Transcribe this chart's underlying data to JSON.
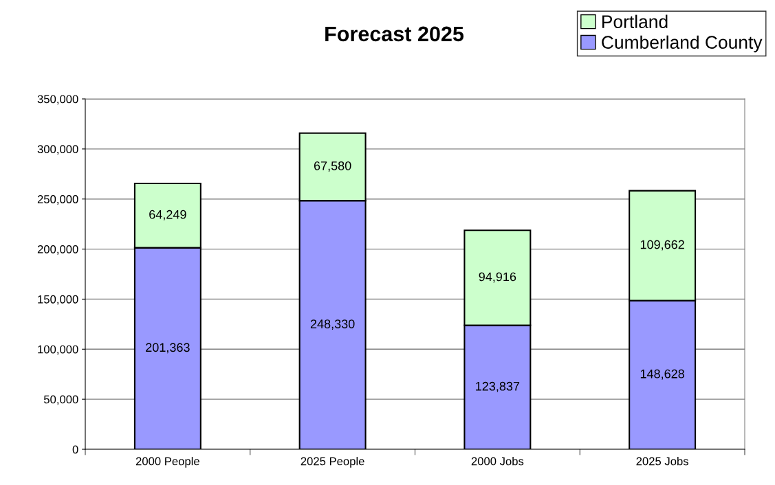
{
  "chart_data": {
    "type": "bar",
    "title": "Forecast 2025",
    "stacked": true,
    "categories": [
      "2000 People",
      "2025 People",
      "2000 Jobs",
      "2025 Jobs"
    ],
    "series": [
      {
        "name": "Cumberland County",
        "color": "#9999ff",
        "values": [
          201363,
          248330,
          123837,
          148628
        ],
        "value_labels": [
          "201,363",
          "248,330",
          "123,837",
          "148,628"
        ]
      },
      {
        "name": "Portland",
        "color": "#ccffcc",
        "values": [
          64249,
          67580,
          94916,
          109662
        ],
        "value_labels": [
          "64,249",
          "67,580",
          "94,916",
          "109,662"
        ]
      }
    ],
    "ylim": [
      0,
      350000
    ],
    "yticks": [
      0,
      {
        "value": 50000,
        "label": "50,000"
      },
      {
        "value": 100000,
        "label": "100,000"
      },
      {
        "value": 150000,
        "label": "150,000"
      },
      {
        "value": 200000,
        "label": "200,000"
      },
      {
        "value": 250000,
        "label": "250,000"
      },
      {
        "value": 300000,
        "label": "300,000"
      },
      {
        "value": 350000,
        "label": "350,000"
      }
    ],
    "grid": "y",
    "legend": "top right"
  }
}
